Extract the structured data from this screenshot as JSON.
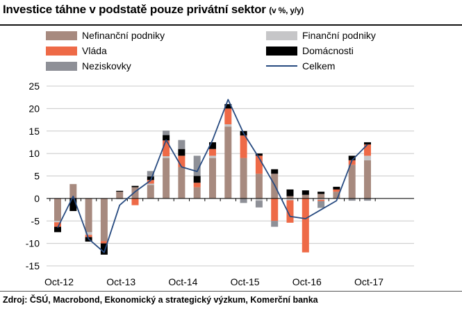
{
  "title": "Investice táhne v podstatě pouze privátní sektor",
  "title_units": "(v %, y/y)",
  "source": "Zdroj: ČSÚ, Macrobond, Ekonomický a strategický výzkum, Komerční banka",
  "colors": {
    "Nefinanční podniky": "#a78a7f",
    "Finanční podniky": "#c6c6c8",
    "Vláda": "#ee6a47",
    "Domácnosti": "#000000",
    "Neziskovky": "#8e9097",
    "Celkem": "#274a80",
    "grid": "#c8c8c8"
  },
  "chart_data": {
    "type": "bar",
    "stacked": true,
    "ylim": [
      -15,
      25
    ],
    "yticks": [
      25,
      20,
      15,
      10,
      5,
      0,
      -5,
      -10,
      -15
    ],
    "xtick_labels": [
      "Oct-12",
      "Oct-13",
      "Oct-14",
      "Oct-15",
      "Oct-16",
      "Oct-17"
    ],
    "xtick_quarters": [
      0,
      4,
      8,
      12,
      16,
      20
    ],
    "grid": true,
    "legend_position": "top",
    "quarters": 21,
    "series": [
      {
        "name": "Nefinanční podniky",
        "kind": "bar",
        "values": [
          -5.0,
          3.2,
          -7.5,
          -9.5,
          1.5,
          2.5,
          3.0,
          9.0,
          7.0,
          2.5,
          9.0,
          16.0,
          9.0,
          5.5,
          5.5,
          0.5,
          0.8,
          1.0,
          1.5,
          7.5,
          8.5
        ]
      },
      {
        "name": "Finanční podniky",
        "kind": "bar",
        "values": [
          -0.3,
          0.0,
          -0.6,
          0.0,
          -0.2,
          0.0,
          0.3,
          0.4,
          0.0,
          0.0,
          0.5,
          0.5,
          0.0,
          -0.5,
          0.0,
          -0.4,
          0.0,
          -0.3,
          0.0,
          0.0,
          1.0
        ]
      },
      {
        "name": "Vláda",
        "kind": "bar",
        "values": [
          -1.0,
          0.0,
          -0.5,
          -0.5,
          0.0,
          -1.5,
          0.8,
          3.5,
          2.5,
          1.0,
          1.5,
          3.5,
          5.0,
          4.0,
          -5.0,
          -5.0,
          -12.0,
          -0.3,
          0.5,
          1.0,
          2.5
        ]
      },
      {
        "name": "Domácnosti",
        "kind": "bar",
        "values": [
          -1.2,
          -2.8,
          -1.0,
          -2.5,
          0.2,
          0.3,
          0.8,
          1.2,
          1.5,
          1.5,
          1.5,
          1.0,
          1.0,
          0.5,
          1.0,
          1.5,
          1.0,
          0.5,
          0.6,
          1.0,
          0.5
        ]
      },
      {
        "name": "Neziskovky",
        "kind": "bar",
        "values": [
          0.0,
          0.0,
          0.0,
          0.0,
          0.0,
          0.0,
          1.2,
          1.0,
          2.0,
          4.5,
          0.0,
          0.0,
          -1.0,
          -1.5,
          -1.3,
          0.0,
          0.0,
          -1.5,
          0.0,
          -0.5,
          -0.5
        ]
      },
      {
        "name": "Celkem",
        "kind": "line",
        "values": [
          -6.5,
          0.5,
          -9.0,
          -12.0,
          -1.5,
          1.5,
          4.0,
          13.0,
          7.0,
          6.0,
          13.0,
          22.0,
          14.5,
          9.0,
          3.0,
          -4.0,
          -4.5,
          -2.5,
          -0.5,
          8.5,
          12.0
        ]
      }
    ]
  }
}
